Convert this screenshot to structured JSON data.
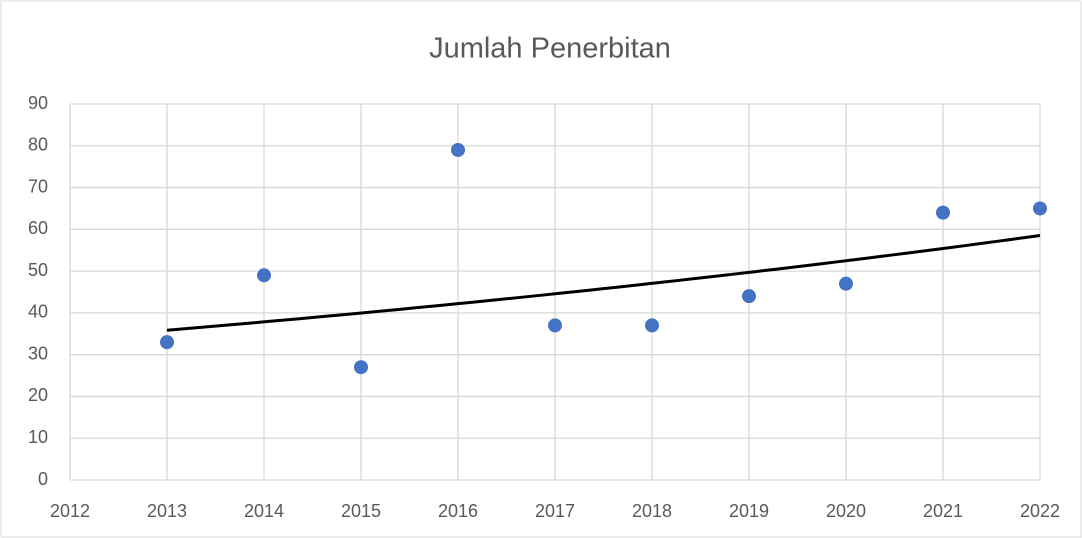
{
  "chart_data": {
    "type": "scatter",
    "title": "Jumlah Penerbitan",
    "x": [
      2013,
      2014,
      2015,
      2016,
      2017,
      2018,
      2019,
      2020,
      2021,
      2022
    ],
    "values": [
      33,
      49,
      27,
      79,
      37,
      37,
      44,
      47,
      64,
      65
    ],
    "color": "#4472c4",
    "xlim": [
      2012,
      2022
    ],
    "xticks": [
      2012,
      2013,
      2014,
      2015,
      2016,
      2017,
      2018,
      2019,
      2020,
      2021,
      2022
    ],
    "ylim": [
      0,
      90
    ],
    "yticks": [
      0,
      10,
      20,
      30,
      40,
      50,
      60,
      70,
      80,
      90
    ],
    "grid": true,
    "trendline": {
      "type": "exponential",
      "color": "#000000"
    }
  }
}
